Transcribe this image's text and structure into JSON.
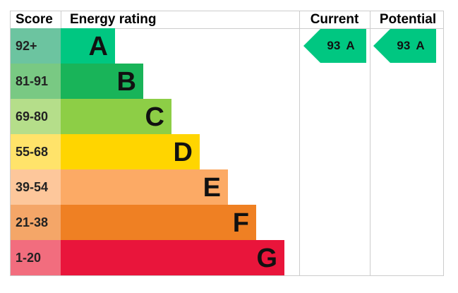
{
  "header": {
    "score": "Score",
    "rating": "Energy rating",
    "current": "Current",
    "potential": "Potential"
  },
  "bands": [
    {
      "score": "92+",
      "letter": "A",
      "color": "#00c781",
      "light": "#6cc4a0"
    },
    {
      "score": "81-91",
      "letter": "B",
      "color": "#19b459",
      "light": "#79c983"
    },
    {
      "score": "69-80",
      "letter": "C",
      "color": "#8dce46",
      "light": "#b5de8a"
    },
    {
      "score": "55-68",
      "letter": "D",
      "color": "#ffd500",
      "light": "#ffe36a"
    },
    {
      "score": "39-54",
      "letter": "E",
      "color": "#fcaa65",
      "light": "#fdc79b"
    },
    {
      "score": "21-38",
      "letter": "F",
      "color": "#ef8023",
      "light": "#f4a668"
    },
    {
      "score": "1-20",
      "letter": "G",
      "color": "#e9153b",
      "light": "#f26d7e"
    }
  ],
  "current": {
    "value": 93,
    "letter": "A"
  },
  "potential": {
    "value": 93,
    "letter": "A"
  }
}
